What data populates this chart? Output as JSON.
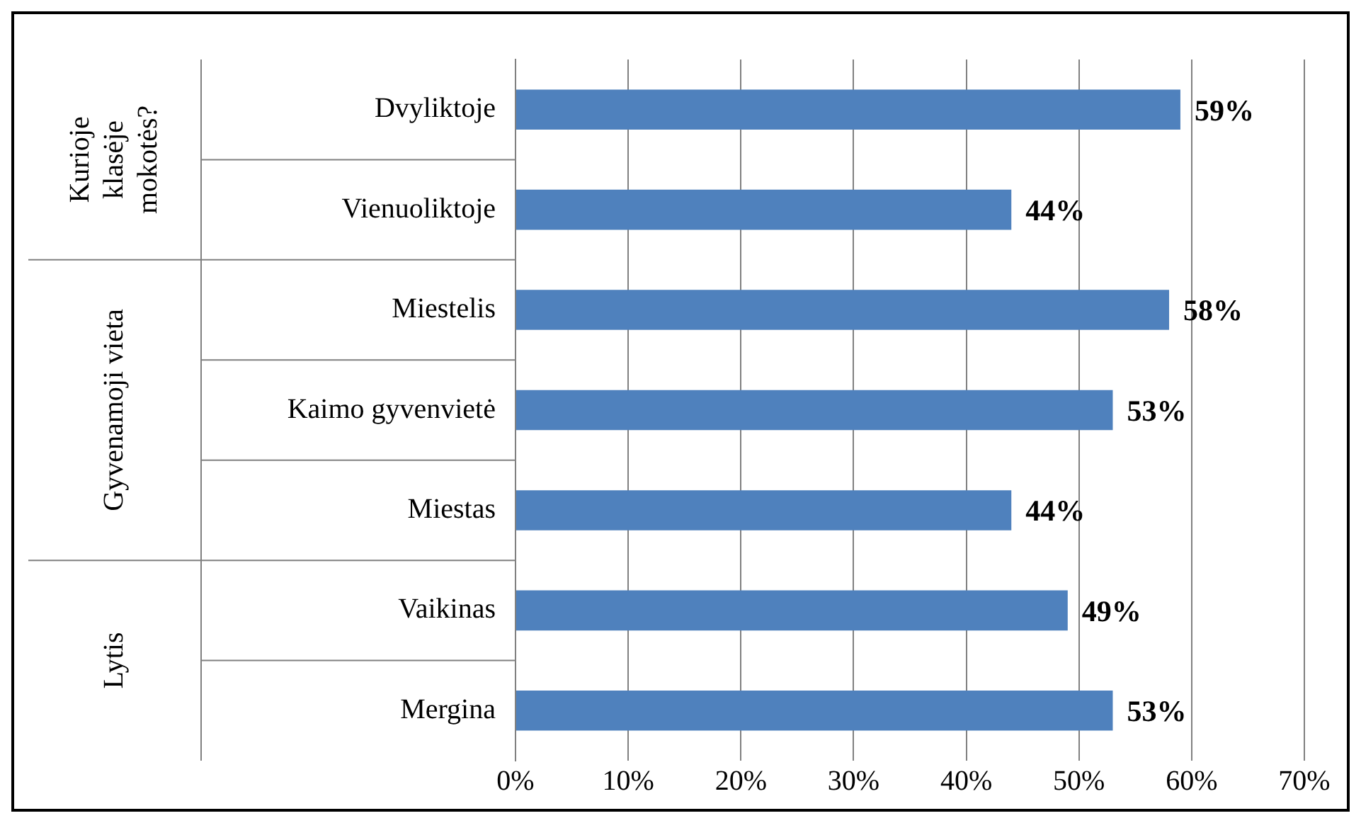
{
  "chart_data": {
    "type": "bar",
    "orientation": "horizontal",
    "categories": [
      "Dvyliktoje",
      "Vienuoliktoje",
      "Miestelis",
      "Kaimo gyvenvietė",
      "Miestas",
      "Vaikinas",
      "Mergina"
    ],
    "values": [
      59,
      44,
      58,
      53,
      44,
      49,
      53
    ],
    "value_labels": [
      "59%",
      "44%",
      "58%",
      "53%",
      "44%",
      "49%",
      "53%"
    ],
    "color": "#4f81bd",
    "xlim": [
      0,
      70
    ],
    "xticks": [
      {
        "value": 0,
        "label": "0%"
      },
      {
        "value": 10,
        "label": "10%"
      },
      {
        "value": 20,
        "label": "20%"
      },
      {
        "value": 30,
        "label": "30%"
      },
      {
        "value": 40,
        "label": "40%"
      },
      {
        "value": 50,
        "label": "50%"
      },
      {
        "value": 60,
        "label": "60%"
      },
      {
        "value": 70,
        "label": "70%"
      }
    ],
    "grid": "x",
    "annotations": [
      "Kurioje klasėje mokotės?",
      "Gyvenamoji vieta",
      "Lytis"
    ]
  }
}
